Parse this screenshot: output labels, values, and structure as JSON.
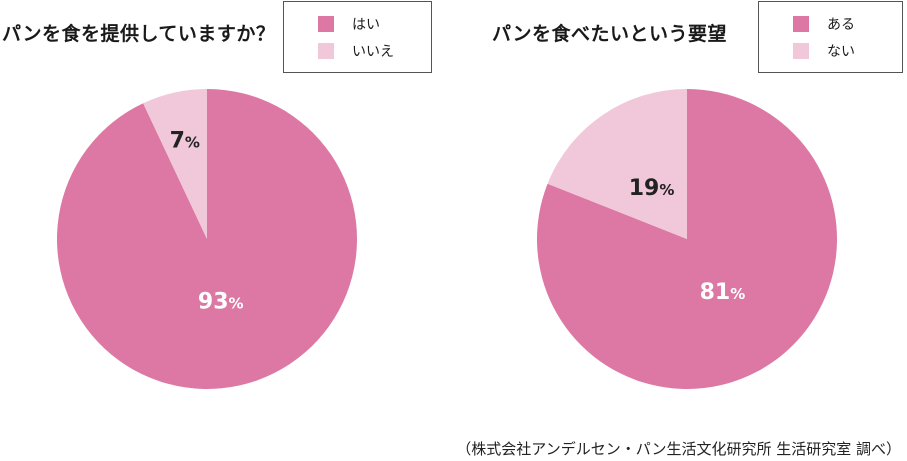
{
  "chart_data": [
    {
      "type": "pie",
      "title": "パンを食を提供していますか？",
      "legend_position": "top-right",
      "categories": [
        "はい",
        "いいえ"
      ],
      "values": [
        93,
        7
      ],
      "value_labels": [
        "93",
        "7"
      ],
      "unit": "%",
      "colors": [
        "#dc78a3",
        "#f0c8da"
      ],
      "label_colors": [
        "#ffffff",
        "#222222"
      ]
    },
    {
      "type": "pie",
      "title": "パンを食べたいという要望",
      "legend_position": "top-right",
      "categories": [
        "ある",
        "ない"
      ],
      "values": [
        81,
        19
      ],
      "value_labels": [
        "81",
        "19"
      ],
      "unit": "%",
      "colors": [
        "#dc78a3",
        "#f0c8da"
      ],
      "label_colors": [
        "#ffffff",
        "#222222"
      ]
    }
  ],
  "source": "（株式会社アンデルセン・パン生活文化研究所 生活研究室 調べ）"
}
